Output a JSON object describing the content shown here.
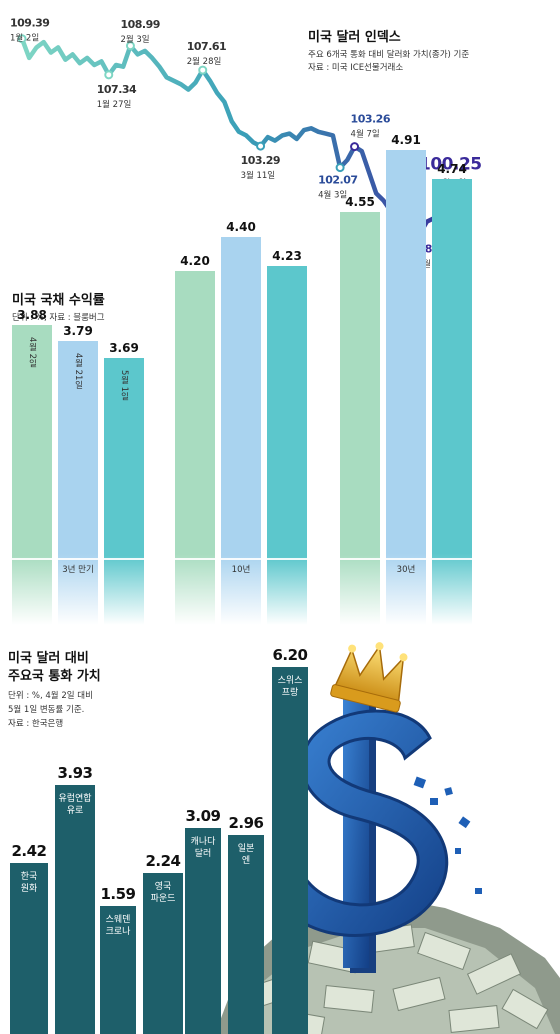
{
  "dollar_index": {
    "title": "미국 달러 인덱스",
    "subtitle1": "주요 6개국 통화 대비 달러화 가치(종가) 기준",
    "subtitle2": "자료 : 미국 ICE선물거래소"
  },
  "treasury": {
    "title": "미국 국채 수익률",
    "subtitle": "단위 : %, 자료 : 블룸버그"
  },
  "currency": {
    "title_line1": "미국 달러 대비",
    "title_line2": "주요국 통화 가치",
    "sub1": "단위 : %, 4월 2일 대비",
    "sub2": "5월 1일 변동률 기준.",
    "sub3": "자료 : 한국은행"
  },
  "colors": {
    "line_start": "#7fd6c4",
    "line_mid": "#3aa0b8",
    "line_end": "#3a2a9a",
    "bar_green": "#a8dcc0",
    "bar_blue": "#a9d3ef",
    "bar_teal": "#5cc7cc",
    "bar_dark": "#1e5f6a",
    "dollar_blue": "#1f5fb5"
  },
  "chart_data": [
    {
      "type": "line",
      "title": "미국 달러 인덱스",
      "annotations": [
        {
          "value": "109.39",
          "date": "1월 2일"
        },
        {
          "value": "107.34",
          "date": "1월 27일"
        },
        {
          "value": "108.99",
          "date": "2월 3일"
        },
        {
          "value": "107.61",
          "date": "2월 28일"
        },
        {
          "value": "103.29",
          "date": "3월 11일"
        },
        {
          "value": "103.26",
          "date": "4월 7일"
        },
        {
          "value": "102.07",
          "date": "4월 3일"
        },
        {
          "value": "98.28",
          "date": "4월 21일"
        },
        {
          "value": "100.25",
          "date": "5월 1일"
        }
      ],
      "series": [
        {
          "values": [
            109.39,
            108.3,
            108.9,
            109.2,
            108.6,
            108.9,
            108.2,
            108.5,
            108.0,
            108.3,
            107.9,
            108.1,
            107.34,
            107.9,
            107.8,
            108.99,
            108.5,
            108.7,
            108.3,
            107.8,
            107.2,
            107.0,
            106.8,
            106.5,
            106.9,
            107.61,
            107.0,
            106.3,
            105.8,
            104.7,
            104.1,
            103.9,
            103.5,
            103.29,
            103.8,
            103.6,
            103.9,
            104.0,
            103.7,
            104.2,
            104.3,
            104.1,
            104.0,
            103.9,
            102.07,
            102.5,
            103.26,
            103.0,
            101.8,
            100.6,
            100.2,
            99.6,
            99.9,
            99.5,
            99.8,
            98.28,
            99.0,
            99.2,
            99.9,
            99.3,
            99.5,
            100.25
          ]
        }
      ],
      "ylim": [
        97.5,
        110
      ]
    },
    {
      "type": "bar",
      "title": "미국 국채 수익률",
      "categories": [
        "3년 만기",
        "10년",
        "30년"
      ],
      "series": [
        {
          "name": "4월 2일",
          "values": [
            3.88,
            4.2,
            4.55
          ]
        },
        {
          "name": "4월 21일",
          "values": [
            3.79,
            4.4,
            4.91
          ]
        },
        {
          "name": "5월 1일",
          "values": [
            3.69,
            4.23,
            4.74
          ]
        }
      ],
      "value_labels": [
        [
          "3.88",
          "3.79",
          "3.69"
        ],
        [
          "4.20",
          "4.40",
          "4.23"
        ],
        [
          "4.55",
          "4.91",
          "4.74"
        ]
      ]
    },
    {
      "type": "bar",
      "title": "미국 달러 대비 주요국 통화 가치",
      "categories": [
        "한국 원화",
        "유럽연합 유로",
        "스웨덴 크로나",
        "영국 파운드",
        "캐나다 달러",
        "일본 엔",
        "스위스 프랑"
      ],
      "labels": [
        [
          "한국",
          "원화"
        ],
        [
          "유럽연합",
          "유로"
        ],
        [
          "스웨덴",
          "크로나"
        ],
        [
          "영국",
          "파운드"
        ],
        [
          "캐나다",
          "달러"
        ],
        [
          "일본",
          "엔"
        ],
        [
          "스위스",
          "프랑"
        ]
      ],
      "values": [
        2.42,
        3.93,
        1.59,
        2.24,
        3.09,
        2.96,
        6.2
      ],
      "value_labels": [
        "2.42",
        "3.93",
        "1.59",
        "2.24",
        "3.09",
        "2.96",
        "6.20"
      ]
    }
  ]
}
